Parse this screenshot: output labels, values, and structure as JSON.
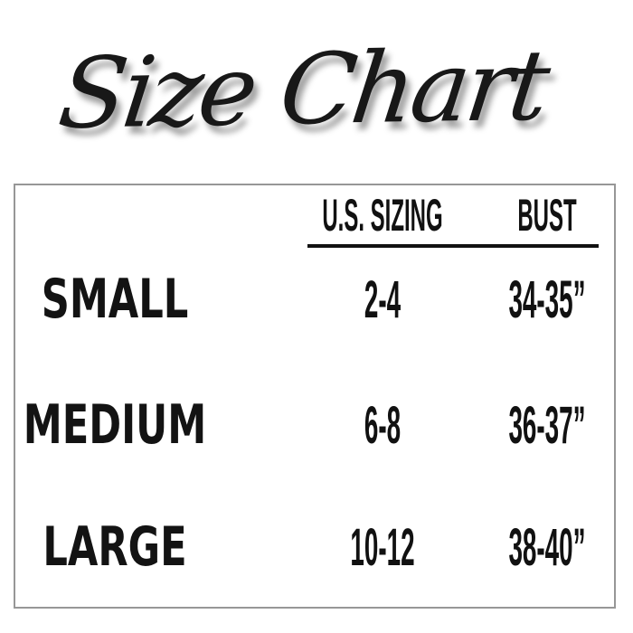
{
  "title": "Size Chart",
  "table": {
    "headers": {
      "sizing": "U.S. SIZING",
      "bust": "BUST"
    },
    "rows": [
      {
        "label": "SMALL",
        "sizing": "2-4",
        "bust": "34-35”"
      },
      {
        "label": "MEDIUM",
        "sizing": "6-8",
        "bust": "36-37”"
      },
      {
        "label": "LARGE",
        "sizing": "10-12",
        "bust": "38-40”"
      }
    ]
  },
  "colors": {
    "background": "#ffffff",
    "text": "#111111",
    "box_border": "#979797",
    "header_rule": "#111111",
    "title_shadow": "rgba(0,0,0,0.38)"
  }
}
